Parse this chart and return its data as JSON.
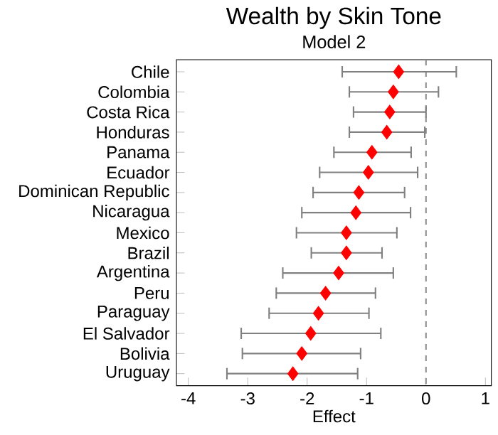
{
  "chart_data": {
    "type": "scatter",
    "orientation": "horizontal",
    "title": "Wealth by Skin Tone",
    "subtitle": "Model 2",
    "xlabel": "Effect",
    "categories": [
      "Chile",
      "Colombia",
      "Costa Rica",
      "Honduras",
      "Panama",
      "Ecuador",
      "Dominican Republic",
      "Nicaragua",
      "Mexico",
      "Brazil",
      "Argentina",
      "Peru",
      "Paraguay",
      "El Salvador",
      "Bolivia",
      "Uruguay"
    ],
    "values": [
      -0.46,
      -0.55,
      -0.61,
      -0.66,
      -0.91,
      -0.97,
      -1.13,
      -1.18,
      -1.34,
      -1.34,
      -1.47,
      -1.69,
      -1.81,
      -1.94,
      -2.09,
      -2.24
    ],
    "errors": [
      [
        -1.41,
        0.51
      ],
      [
        -1.29,
        0.21
      ],
      [
        -1.22,
        0.0
      ],
      [
        -1.29,
        -0.02
      ],
      [
        -1.55,
        -0.25
      ],
      [
        -1.79,
        -0.14
      ],
      [
        -1.9,
        -0.36
      ],
      [
        -2.09,
        -0.26
      ],
      [
        -2.18,
        -0.49
      ],
      [
        -1.93,
        -0.74
      ],
      [
        -2.41,
        -0.55
      ],
      [
        -2.52,
        -0.85
      ],
      [
        -2.64,
        -0.96
      ],
      [
        -3.11,
        -0.76
      ],
      [
        -3.09,
        -1.1
      ],
      [
        -3.35,
        -1.15
      ]
    ],
    "color": "#ff0000",
    "marker": "diamond",
    "xlim": [
      -4.2,
      1.1
    ],
    "xticks": [
      -4,
      -3,
      -2,
      -1,
      0,
      1
    ],
    "ref_lines": [
      {
        "axis": "x",
        "value": 0,
        "color": "#909090",
        "line_style": "dashed"
      }
    ],
    "grid": false
  }
}
